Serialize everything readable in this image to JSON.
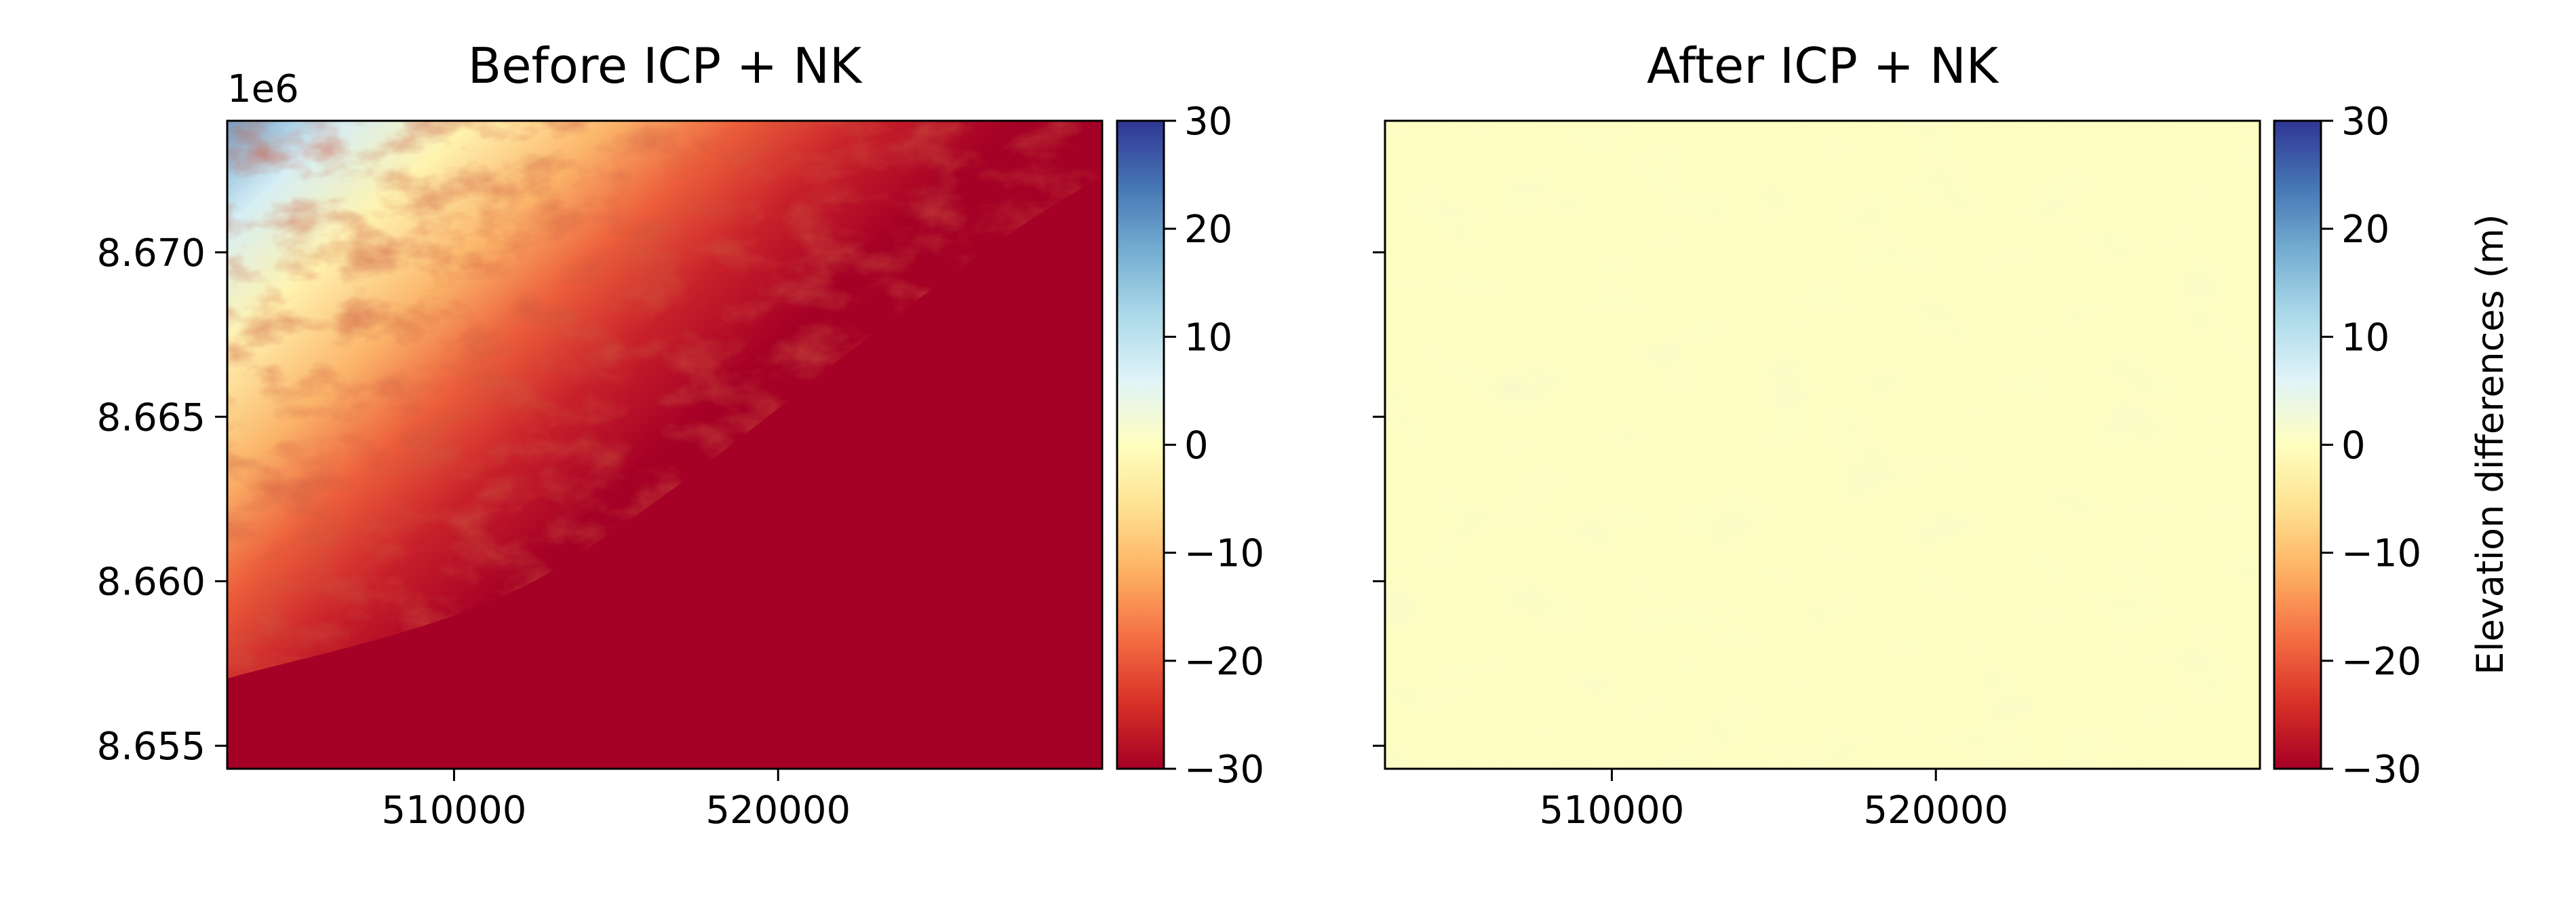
{
  "chart_data": [
    {
      "type": "heatmap",
      "title": "Before ICP + NK",
      "xlabel": "",
      "ylabel": "",
      "xlim": [
        503000,
        530000
      ],
      "ylim": [
        8654300,
        8674000
      ],
      "x_ticks": [
        510000,
        520000
      ],
      "x_tick_labels": [
        "510000",
        "520000"
      ],
      "y_ticks": [
        8655000,
        8660000,
        8665000,
        8670000
      ],
      "y_tick_labels": [
        "8.655",
        "8.660",
        "8.665",
        "8.670"
      ],
      "y_offset_text": "1e6",
      "colormap": "RdYlBu",
      "vmin": -30,
      "vmax": 30,
      "colorbar_ticks": [
        30,
        20,
        10,
        0,
        -10,
        -20,
        -30
      ],
      "colorbar_tick_labels": [
        "30",
        "20",
        "10",
        "0",
        "−10",
        "−20",
        "−30"
      ],
      "colorbar_label": ""
    },
    {
      "type": "heatmap",
      "title": "After ICP + NK",
      "xlabel": "",
      "ylabel": "",
      "xlim": [
        503000,
        530000
      ],
      "ylim": [
        8654300,
        8674000
      ],
      "x_ticks": [
        510000,
        520000
      ],
      "x_tick_labels": [
        "510000",
        "520000"
      ],
      "y_ticks": [
        8655000,
        8660000,
        8665000,
        8670000
      ],
      "y_tick_labels": [],
      "colormap": "RdYlBu",
      "vmin": -30,
      "vmax": 30,
      "colorbar_ticks": [
        30,
        20,
        10,
        0,
        -10,
        -20,
        -30
      ],
      "colorbar_tick_labels": [
        "30",
        "20",
        "10",
        "0",
        "−10",
        "−20",
        "−30"
      ],
      "colorbar_label": "Elevation differences (m)"
    }
  ],
  "colors": {
    "cmap_stops": [
      "#a50026",
      "#d73027",
      "#f46d43",
      "#fdae61",
      "#fee090",
      "#ffffbf",
      "#e0f3f8",
      "#abd9e9",
      "#74add1",
      "#4575b4",
      "#313695"
    ],
    "before_base": "#a50026",
    "after_base": "#fefec2"
  }
}
